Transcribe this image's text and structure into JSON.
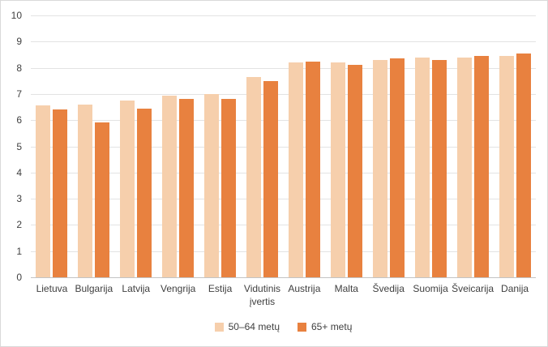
{
  "chart_data": {
    "type": "bar",
    "categories": [
      "Lietuva",
      "Bulgarija",
      "Latvija",
      "Vengrija",
      "Estija",
      "Vidutinis įvertis",
      "Austrija",
      "Malta",
      "Švedija",
      "Suomija",
      "Šveicarija",
      "Danija"
    ],
    "series": [
      {
        "name": "50–64 metų",
        "color": "#F6CFAC",
        "values": [
          6.55,
          6.6,
          6.75,
          6.95,
          7.0,
          7.65,
          8.2,
          8.2,
          8.3,
          8.4,
          8.4,
          8.45
        ]
      },
      {
        "name": "65+ metų",
        "color": "#E8813F",
        "values": [
          6.4,
          5.9,
          6.45,
          6.8,
          6.8,
          7.5,
          8.25,
          8.1,
          8.35,
          8.3,
          8.45,
          8.55
        ]
      }
    ],
    "title": "",
    "xlabel": "",
    "ylabel": "",
    "ylim": [
      0,
      10
    ],
    "ytick_step": 1,
    "yticks": [
      "0",
      "1",
      "2",
      "3",
      "4",
      "5",
      "6",
      "7",
      "8",
      "9",
      "10"
    ],
    "grid": true,
    "legend_position": "bottom"
  },
  "colors": {
    "grid": "#E3E3E3",
    "axis_line": "#C3C3C3",
    "text": "#3F3F3F",
    "border": "#D9D9D9",
    "background": "#FFFFFF"
  }
}
